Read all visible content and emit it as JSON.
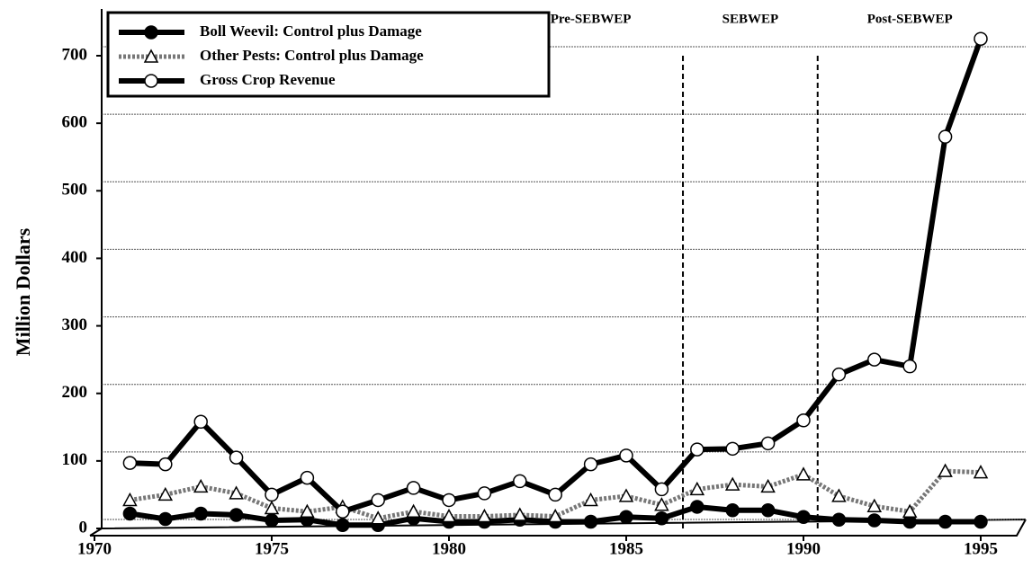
{
  "chart_data": {
    "type": "line",
    "ylabel": "Million Dollars",
    "x": [
      1971,
      1972,
      1973,
      1974,
      1975,
      1976,
      1977,
      1978,
      1979,
      1980,
      1981,
      1982,
      1983,
      1984,
      1985,
      1986,
      1987,
      1988,
      1989,
      1990,
      1991,
      1992,
      1993,
      1994,
      1995
    ],
    "series": [
      {
        "name": "Boll Weevil: Control plus Damage",
        "color": "#000000",
        "marker": "circle",
        "marker_fill": "#000000",
        "dashed": false,
        "values": [
          22,
          14,
          22,
          20,
          12,
          13,
          5,
          5,
          15,
          10,
          10,
          13,
          10,
          10,
          17,
          15,
          32,
          27,
          27,
          17,
          13,
          12,
          10,
          10,
          10
        ]
      },
      {
        "name": "Other Pests: Control plus Damage",
        "color": "#777777",
        "marker": "triangle",
        "marker_fill": "#ffffff",
        "dashed": true,
        "values": [
          42,
          50,
          62,
          52,
          30,
          25,
          32,
          15,
          25,
          18,
          18,
          20,
          18,
          42,
          48,
          35,
          58,
          65,
          62,
          80,
          48,
          33,
          25,
          85,
          83
        ]
      },
      {
        "name": "Gross Crop Revenue",
        "color": "#000000",
        "marker": "circle",
        "marker_fill": "#ffffff",
        "dashed": false,
        "values": [
          97,
          95,
          158,
          105,
          50,
          75,
          25,
          42,
          60,
          42,
          52,
          70,
          50,
          95,
          108,
          58,
          117,
          118,
          126,
          160,
          228,
          250,
          240,
          580,
          725
        ]
      }
    ],
    "phases": [
      {
        "label": "Pre-SEBWEP",
        "x": 1984
      },
      {
        "label": "SEBWEP",
        "x": 1988.5
      },
      {
        "label": "Post-SEBWEP",
        "x": 1993
      }
    ],
    "phase_boundaries": [
      1986.6,
      1990.4
    ],
    "xlim": [
      1970,
      1995
    ],
    "xticks": [
      1970,
      1975,
      1980,
      1985,
      1990,
      1995
    ],
    "ylim": [
      0,
      700
    ],
    "yticks": [
      0,
      100,
      200,
      300,
      400,
      500,
      600,
      700
    ],
    "grid": true,
    "legend": "top-left"
  }
}
